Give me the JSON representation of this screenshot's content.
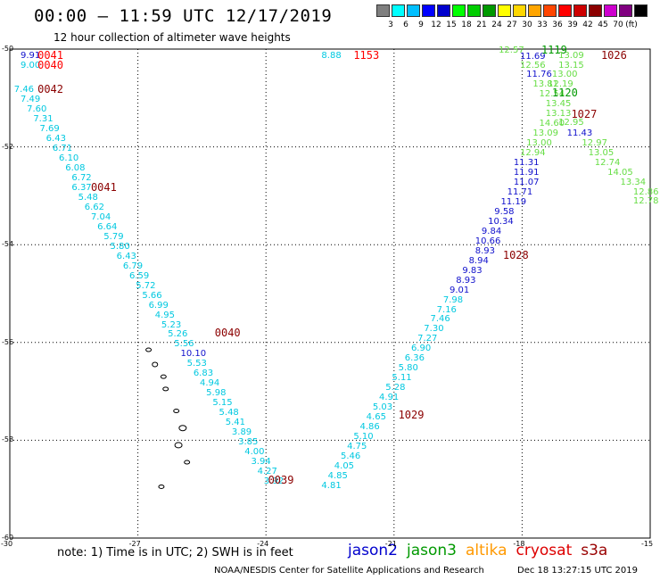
{
  "title": "00:00 – 11:59 UTC 12/17/2019",
  "subtitle": "12 hour collection of altimeter wave heights",
  "colorbar": {
    "unit": "(ft)",
    "colors": [
      "#7f7f7f",
      "#00ffff",
      "#00bfff",
      "#0000ff",
      "#0000cd",
      "#00ff00",
      "#00cd00",
      "#009900",
      "#ffff00",
      "#ffd700",
      "#ffa500",
      "#ff4500",
      "#ff0000",
      "#cd0000",
      "#8b0000",
      "#cd00cd",
      "#800080",
      "#000000"
    ],
    "labels": [
      "3",
      "6",
      "9",
      "12",
      "15",
      "18",
      "21",
      "24",
      "27",
      "30",
      "33",
      "36",
      "39",
      "42",
      "45",
      "70"
    ]
  },
  "axes": {
    "lat_ticks": [
      "-50",
      "-52",
      "-54",
      "-56",
      "-58",
      "-60"
    ],
    "lon_ticks": [
      "-30",
      "-27",
      "-24",
      "-21",
      "-18",
      "-15"
    ],
    "grid": "dotted"
  },
  "colors": {
    "jason2": "#0000cd",
    "jason3": "#009900",
    "altika": "#ff9900",
    "cryosat": "#dd0000",
    "s3a": "#990000",
    "cyan": "#00c8e0",
    "lightgreen": "#66dd44",
    "blue": "#1010cc",
    "darkred": "#8b0000",
    "red": "#ff0000",
    "green": "#009900"
  },
  "chart_data": {
    "type": "scatter",
    "xlim": [
      -30,
      -15
    ],
    "ylim": [
      -60,
      -50
    ],
    "swh_labels": [
      {
        "lon": -29.75,
        "lat": -50.12,
        "v": "9.91",
        "c": "blue"
      },
      {
        "lon": -29.75,
        "lat": -50.32,
        "v": "9.00",
        "c": "cyan"
      },
      {
        "lon": -29.9,
        "lat": -50.82,
        "v": "7.46",
        "c": "cyan"
      },
      {
        "lon": -29.75,
        "lat": -51.02,
        "v": "7.49",
        "c": "cyan"
      },
      {
        "lon": -29.6,
        "lat": -51.22,
        "v": "7.60",
        "c": "cyan"
      },
      {
        "lon": -29.45,
        "lat": -51.42,
        "v": "7.31",
        "c": "cyan"
      },
      {
        "lon": -29.3,
        "lat": -51.62,
        "v": "7.69",
        "c": "cyan"
      },
      {
        "lon": -29.15,
        "lat": -51.82,
        "v": "6.43",
        "c": "cyan"
      },
      {
        "lon": -29.0,
        "lat": -52.02,
        "v": "6.71",
        "c": "cyan"
      },
      {
        "lon": -28.85,
        "lat": -52.22,
        "v": "6.10",
        "c": "cyan"
      },
      {
        "lon": -28.7,
        "lat": -52.42,
        "v": "6.08",
        "c": "cyan"
      },
      {
        "lon": -28.55,
        "lat": -52.62,
        "v": "6.72",
        "c": "cyan"
      },
      {
        "lon": -28.55,
        "lat": -52.83,
        "v": "6.37",
        "c": "cyan"
      },
      {
        "lon": -28.4,
        "lat": -53.03,
        "v": "5.48",
        "c": "cyan"
      },
      {
        "lon": -28.25,
        "lat": -53.23,
        "v": "6.62",
        "c": "cyan"
      },
      {
        "lon": -28.1,
        "lat": -53.43,
        "v": "7.04",
        "c": "cyan"
      },
      {
        "lon": -27.95,
        "lat": -53.63,
        "v": "6.64",
        "c": "cyan"
      },
      {
        "lon": -27.8,
        "lat": -53.83,
        "v": "5.79",
        "c": "cyan"
      },
      {
        "lon": -27.65,
        "lat": -54.03,
        "v": "5.80",
        "c": "cyan"
      },
      {
        "lon": -27.5,
        "lat": -54.23,
        "v": "6.43",
        "c": "cyan"
      },
      {
        "lon": -27.35,
        "lat": -54.43,
        "v": "6.79",
        "c": "cyan"
      },
      {
        "lon": -27.2,
        "lat": -54.63,
        "v": "6.59",
        "c": "cyan"
      },
      {
        "lon": -27.05,
        "lat": -54.83,
        "v": "5.72",
        "c": "cyan"
      },
      {
        "lon": -26.9,
        "lat": -55.03,
        "v": "5.66",
        "c": "cyan"
      },
      {
        "lon": -26.75,
        "lat": -55.23,
        "v": "6.99",
        "c": "cyan"
      },
      {
        "lon": -26.6,
        "lat": -55.43,
        "v": "4.95",
        "c": "cyan"
      },
      {
        "lon": -26.45,
        "lat": -55.63,
        "v": "5.23",
        "c": "cyan"
      },
      {
        "lon": -26.3,
        "lat": -55.83,
        "v": "5.26",
        "c": "cyan"
      },
      {
        "lon": -26.15,
        "lat": -56.03,
        "v": "5.56",
        "c": "cyan"
      },
      {
        "lon": -26.0,
        "lat": -56.23,
        "v": "10.10",
        "c": "blue"
      },
      {
        "lon": -25.85,
        "lat": -56.43,
        "v": "5.53",
        "c": "cyan"
      },
      {
        "lon": -25.7,
        "lat": -56.63,
        "v": "6.83",
        "c": "cyan"
      },
      {
        "lon": -25.55,
        "lat": -56.83,
        "v": "4.94",
        "c": "cyan"
      },
      {
        "lon": -25.4,
        "lat": -57.03,
        "v": "5.98",
        "c": "cyan"
      },
      {
        "lon": -25.25,
        "lat": -57.23,
        "v": "5.15",
        "c": "cyan"
      },
      {
        "lon": -25.1,
        "lat": -57.43,
        "v": "5.48",
        "c": "cyan"
      },
      {
        "lon": -24.95,
        "lat": -57.63,
        "v": "5.41",
        "c": "cyan"
      },
      {
        "lon": -24.8,
        "lat": -57.83,
        "v": "3.89",
        "c": "cyan"
      },
      {
        "lon": -24.65,
        "lat": -58.03,
        "v": "3.85",
        "c": "cyan"
      },
      {
        "lon": -24.5,
        "lat": -58.23,
        "v": "4.00",
        "c": "cyan"
      },
      {
        "lon": -24.35,
        "lat": -58.43,
        "v": "3.94",
        "c": "cyan"
      },
      {
        "lon": -24.2,
        "lat": -58.63,
        "v": "4.27",
        "c": "cyan"
      },
      {
        "lon": -24.05,
        "lat": -58.83,
        "v": "3.92",
        "c": "cyan"
      },
      {
        "lon": -22.7,
        "lat": -50.12,
        "v": "8.88",
        "c": "cyan"
      },
      {
        "lon": -18.55,
        "lat": -50.02,
        "v": "12.57",
        "c": "lightgreen"
      },
      {
        "lon": -18.05,
        "lat": -50.14,
        "v": "11.69",
        "c": "blue"
      },
      {
        "lon": -17.15,
        "lat": -50.12,
        "v": "13.09",
        "c": "lightgreen"
      },
      {
        "lon": -18.05,
        "lat": -50.32,
        "v": "12.56",
        "c": "lightgreen"
      },
      {
        "lon": -17.15,
        "lat": -50.32,
        "v": "13.15",
        "c": "lightgreen"
      },
      {
        "lon": -17.9,
        "lat": -50.52,
        "v": "11.76",
        "c": "blue"
      },
      {
        "lon": -17.3,
        "lat": -50.52,
        "v": "13.00",
        "c": "lightgreen"
      },
      {
        "lon": -17.75,
        "lat": -50.72,
        "v": "13.81",
        "c": "lightgreen"
      },
      {
        "lon": -17.4,
        "lat": -50.72,
        "v": "12.19",
        "c": "lightgreen"
      },
      {
        "lon": -17.6,
        "lat": -50.92,
        "v": "12.54",
        "c": "lightgreen"
      },
      {
        "lon": -17.45,
        "lat": -51.12,
        "v": "13.45",
        "c": "lightgreen"
      },
      {
        "lon": -17.45,
        "lat": -51.32,
        "v": "13.13",
        "c": "lightgreen"
      },
      {
        "lon": -17.15,
        "lat": -51.5,
        "v": "12.95",
        "c": "lightgreen"
      },
      {
        "lon": -17.6,
        "lat": -51.52,
        "v": "14.60",
        "c": "lightgreen"
      },
      {
        "lon": -17.75,
        "lat": -51.72,
        "v": "13.09",
        "c": "lightgreen"
      },
      {
        "lon": -16.95,
        "lat": -51.72,
        "v": "11.43",
        "c": "blue"
      },
      {
        "lon": -16.6,
        "lat": -51.92,
        "v": "12.97",
        "c": "lightgreen"
      },
      {
        "lon": -17.9,
        "lat": -51.92,
        "v": "13.00",
        "c": "lightgreen"
      },
      {
        "lon": -16.45,
        "lat": -52.12,
        "v": "13.05",
        "c": "lightgreen"
      },
      {
        "lon": -18.05,
        "lat": -52.12,
        "v": "12.94",
        "c": "lightgreen"
      },
      {
        "lon": -16.3,
        "lat": -52.32,
        "v": "12.74",
        "c": "lightgreen"
      },
      {
        "lon": -18.2,
        "lat": -52.32,
        "v": "11.31",
        "c": "blue"
      },
      {
        "lon": -16.0,
        "lat": -52.52,
        "v": "14.05",
        "c": "lightgreen"
      },
      {
        "lon": -18.2,
        "lat": -52.52,
        "v": "11.91",
        "c": "blue"
      },
      {
        "lon": -15.7,
        "lat": -52.72,
        "v": "13.34",
        "c": "lightgreen"
      },
      {
        "lon": -18.2,
        "lat": -52.72,
        "v": "11.07",
        "c": "blue"
      },
      {
        "lon": -15.4,
        "lat": -52.92,
        "v": "12.86",
        "c": "lightgreen"
      },
      {
        "lon": -18.35,
        "lat": -52.92,
        "v": "11.71",
        "c": "blue"
      },
      {
        "lon": -15.4,
        "lat": -53.1,
        "v": "12.78",
        "c": "lightgreen"
      },
      {
        "lon": -18.5,
        "lat": -53.12,
        "v": "11.19",
        "c": "blue"
      },
      {
        "lon": -18.65,
        "lat": -53.32,
        "v": "9.58",
        "c": "blue"
      },
      {
        "lon": -18.8,
        "lat": -53.52,
        "v": "10.34",
        "c": "blue"
      },
      {
        "lon": -18.95,
        "lat": -53.72,
        "v": "9.84",
        "c": "blue"
      },
      {
        "lon": -19.1,
        "lat": -53.92,
        "v": "10.66",
        "c": "blue"
      },
      {
        "lon": -19.1,
        "lat": -54.12,
        "v": "8.93",
        "c": "blue"
      },
      {
        "lon": -19.25,
        "lat": -54.32,
        "v": "8.94",
        "c": "blue"
      },
      {
        "lon": -19.4,
        "lat": -54.52,
        "v": "9.83",
        "c": "blue"
      },
      {
        "lon": -19.55,
        "lat": -54.72,
        "v": "8.93",
        "c": "blue"
      },
      {
        "lon": -19.7,
        "lat": -54.92,
        "v": "9.01",
        "c": "blue"
      },
      {
        "lon": -19.85,
        "lat": -55.12,
        "v": "7.98",
        "c": "cyan"
      },
      {
        "lon": -20.0,
        "lat": -55.32,
        "v": "7.16",
        "c": "cyan"
      },
      {
        "lon": -20.15,
        "lat": -55.52,
        "v": "7.46",
        "c": "cyan"
      },
      {
        "lon": -20.3,
        "lat": -55.72,
        "v": "7.30",
        "c": "cyan"
      },
      {
        "lon": -20.45,
        "lat": -55.92,
        "v": "7.27",
        "c": "cyan"
      },
      {
        "lon": -20.6,
        "lat": -56.12,
        "v": "6.90",
        "c": "cyan"
      },
      {
        "lon": -20.75,
        "lat": -56.32,
        "v": "6.36",
        "c": "cyan"
      },
      {
        "lon": -20.9,
        "lat": -56.52,
        "v": "5.80",
        "c": "cyan"
      },
      {
        "lon": -21.05,
        "lat": -56.72,
        "v": "5.11",
        "c": "cyan"
      },
      {
        "lon": -21.2,
        "lat": -56.92,
        "v": "5.28",
        "c": "cyan"
      },
      {
        "lon": -21.35,
        "lat": -57.12,
        "v": "4.91",
        "c": "cyan"
      },
      {
        "lon": -21.5,
        "lat": -57.32,
        "v": "5.03",
        "c": "cyan"
      },
      {
        "lon": -21.65,
        "lat": -57.52,
        "v": "4.65",
        "c": "cyan"
      },
      {
        "lon": -21.8,
        "lat": -57.72,
        "v": "4.86",
        "c": "cyan"
      },
      {
        "lon": -21.95,
        "lat": -57.92,
        "v": "5.10",
        "c": "cyan"
      },
      {
        "lon": -22.1,
        "lat": -58.12,
        "v": "4.75",
        "c": "cyan"
      },
      {
        "lon": -22.25,
        "lat": -58.32,
        "v": "5.46",
        "c": "cyan"
      },
      {
        "lon": -22.4,
        "lat": -58.52,
        "v": "4.05",
        "c": "cyan"
      },
      {
        "lon": -22.55,
        "lat": -58.72,
        "v": "4.85",
        "c": "cyan"
      },
      {
        "lon": -22.7,
        "lat": -58.92,
        "v": "4.81",
        "c": "cyan"
      }
    ],
    "time_labels": [
      {
        "lon": -29.35,
        "lat": -50.12,
        "v": "0041",
        "c": "red"
      },
      {
        "lon": -29.35,
        "lat": -50.32,
        "v": "0040",
        "c": "red"
      },
      {
        "lon": -29.35,
        "lat": -50.82,
        "v": "0042",
        "c": "darkred"
      },
      {
        "lon": -28.1,
        "lat": -52.83,
        "v": "0041",
        "c": "darkred"
      },
      {
        "lon": -25.2,
        "lat": -55.8,
        "v": "0040",
        "c": "darkred"
      },
      {
        "lon": -23.95,
        "lat": -58.82,
        "v": "0039",
        "c": "darkred"
      },
      {
        "lon": -21.95,
        "lat": -50.12,
        "v": "1153",
        "c": "red"
      },
      {
        "lon": -17.55,
        "lat": -50.02,
        "v": "1119",
        "c": "green"
      },
      {
        "lon": -16.15,
        "lat": -50.12,
        "v": "1026",
        "c": "darkred"
      },
      {
        "lon": -17.3,
        "lat": -50.9,
        "v": "1120",
        "c": "green"
      },
      {
        "lon": -16.85,
        "lat": -51.33,
        "v": "1027",
        "c": "darkred"
      },
      {
        "lon": -18.45,
        "lat": -54.22,
        "v": "1028",
        "c": "darkred"
      },
      {
        "lon": -20.9,
        "lat": -57.48,
        "v": "1029",
        "c": "darkred"
      }
    ]
  },
  "note": "note: 1) Time is in UTC; 2) SWH is in feet",
  "legend": [
    {
      "key": "jason2",
      "label": "jason2"
    },
    {
      "key": "jason3",
      "label": "jason3"
    },
    {
      "key": "altika",
      "label": "altika"
    },
    {
      "key": "cryosat",
      "label": "cryosat"
    },
    {
      "key": "s3a",
      "label": "s3a"
    }
  ],
  "credit": "NOAA/NESDIS Center for Satellite Applications and Research",
  "generated": "Dec 18 13:27:15 UTC 2019"
}
